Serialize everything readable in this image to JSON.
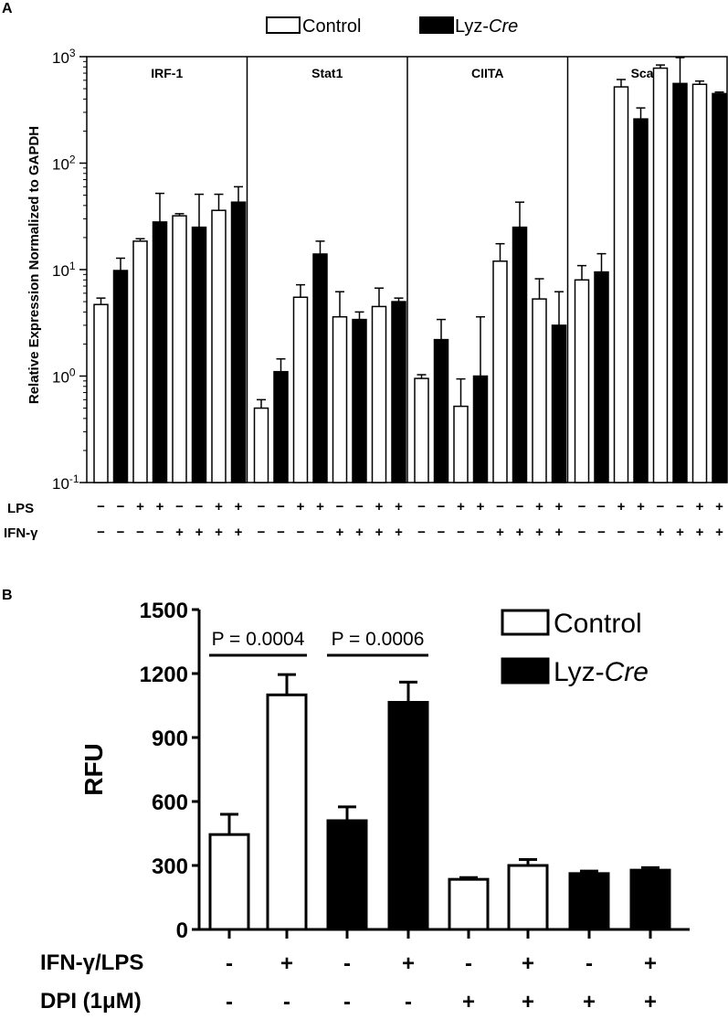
{
  "panel_a": {
    "label": "A",
    "legend": {
      "control": "Control",
      "lyz_prefix": "Lyz-",
      "lyz_italic": "Cre"
    },
    "ylabel": "Relative Expression Normalized to GAPDH",
    "row_labels": {
      "lps": "LPS",
      "ifn": "IFN-γ"
    }
  },
  "panel_b": {
    "label": "B",
    "ylabel": "RFU",
    "legend": {
      "control": "Control",
      "lyz_prefix": "Lyz-",
      "lyz_italic": "Cre"
    },
    "annotations": [
      "P = 0.0004",
      "P = 0.0006"
    ],
    "row_labels": {
      "ifn_lps": "IFN-γ/LPS",
      "dpi": "DPI (1μM)"
    }
  },
  "chart_data": [
    {
      "type": "bar",
      "panel": "A",
      "scale": "log",
      "ylim": [
        0.1,
        1000
      ],
      "ytick_labels": [
        {
          "base": "10",
          "exp": "-1",
          "value": 0.1
        },
        {
          "base": "10",
          "exp": "0",
          "value": 1
        },
        {
          "base": "10",
          "exp": "1",
          "value": 10
        },
        {
          "base": "10",
          "exp": "2",
          "value": 100
        },
        {
          "base": "10",
          "exp": "3",
          "value": 1000
        }
      ],
      "series_order": [
        "Control",
        "Lyz-Cre",
        "Control",
        "Lyz-Cre",
        "Control",
        "Lyz-Cre",
        "Control",
        "Lyz-Cre"
      ],
      "lps": [
        "−",
        "−",
        "+",
        "+",
        "−",
        "−",
        "+",
        "+"
      ],
      "ifn": [
        "−",
        "−",
        "−",
        "−",
        "+",
        "+",
        "+",
        "+"
      ],
      "groups": [
        {
          "name": "IRF-1",
          "values": [
            4.7,
            9.8,
            18.5,
            28,
            32,
            25,
            36,
            43
          ],
          "errors": [
            0.7,
            3,
            1,
            24,
            1.5,
            26,
            15,
            17
          ]
        },
        {
          "name": "Stat1",
          "values": [
            0.5,
            1.1,
            5.5,
            14,
            3.6,
            3.4,
            4.5,
            5
          ],
          "errors": [
            0.1,
            0.35,
            1.7,
            4.5,
            2.6,
            0.6,
            2.2,
            0.4
          ]
        },
        {
          "name": "CIITA",
          "values": [
            0.95,
            2.2,
            0.52,
            1.0,
            12,
            25,
            5.3,
            3.0
          ],
          "errors": [
            0.08,
            1.2,
            0.42,
            2.6,
            5.5,
            18,
            2.9,
            3.2
          ]
        },
        {
          "name": "Sca-1",
          "values": [
            8,
            9.5,
            520,
            260,
            780,
            560,
            550,
            450
          ],
          "errors": [
            2.9,
            4.6,
            90,
            70,
            55,
            420,
            40,
            15
          ]
        }
      ]
    },
    {
      "type": "bar",
      "panel": "B",
      "ylabel": "RFU",
      "ylim": [
        0,
        1500
      ],
      "yticks": [
        0,
        300,
        600,
        900,
        1200,
        1500
      ],
      "series_order": [
        "Control",
        "Control",
        "Lyz-Cre",
        "Lyz-Cre",
        "Control",
        "Control",
        "Lyz-Cre",
        "Lyz-Cre"
      ],
      "ifn_lps": [
        "-",
        "+",
        "-",
        "+",
        "-",
        "+",
        "-",
        "+"
      ],
      "dpi": [
        "-",
        "-",
        "-",
        "-",
        "+",
        "+",
        "+",
        "+"
      ],
      "values": [
        445,
        1100,
        510,
        1065,
        235,
        300,
        262,
        278
      ],
      "errors": [
        95,
        95,
        65,
        95,
        8,
        28,
        12,
        12
      ],
      "comparisons": [
        {
          "bars": [
            0,
            1
          ],
          "label": "P = 0.0004"
        },
        {
          "bars": [
            2,
            3
          ],
          "label": "P = 0.0006"
        }
      ]
    }
  ]
}
